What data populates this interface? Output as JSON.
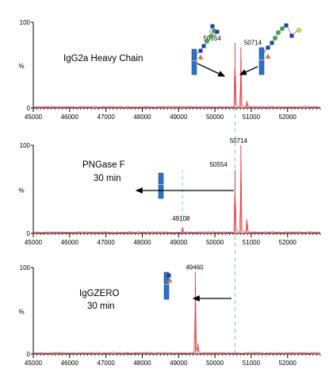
{
  "colors": {
    "trace": "#e8414a",
    "axis": "#000000",
    "arrow": "#000000",
    "guide": "#9ec1e0",
    "protein": "#2f6fc4",
    "glcnac": "#1f3fa8",
    "mannose": "#3cae4a",
    "galactose": "#f2d630",
    "fucose": "#e8604a",
    "fucose_edge": "#d09a2c"
  },
  "chart_data": [
    {
      "type": "line",
      "title": "IgG2a Heavy Chain",
      "xlabel": "",
      "ylabel": "%",
      "xlim": [
        45000,
        52900
      ],
      "ylim": [
        0,
        100
      ],
      "x_ticks": [
        45000,
        46000,
        47000,
        48000,
        49000,
        50000,
        51000,
        52000
      ],
      "y_ticks": [
        0,
        100
      ],
      "y_tick_labels": [
        "0",
        "100"
      ],
      "peaks": [
        {
          "mz": 50554,
          "value": 76,
          "label": "50554"
        },
        {
          "mz": 50714,
          "value": 71,
          "label": "50714"
        },
        {
          "mz": 50880,
          "value": 8,
          "label": ""
        }
      ],
      "annotations": [
        "50554",
        "50714"
      ]
    },
    {
      "type": "line",
      "title": "PNGase F 30 min",
      "title_lines": [
        "PNGase F",
        "30 min"
      ],
      "xlabel": "",
      "ylabel": "%",
      "xlim": [
        45000,
        52900
      ],
      "ylim": [
        0,
        100
      ],
      "x_ticks": [
        45000,
        46000,
        47000,
        48000,
        49000,
        50000,
        51000,
        52000
      ],
      "y_ticks": [
        0,
        100
      ],
      "y_tick_labels": [
        "0",
        "100"
      ],
      "peaks": [
        {
          "mz": 49108,
          "value": 7,
          "label": "49108"
        },
        {
          "mz": 50554,
          "value": 72,
          "label": "50554"
        },
        {
          "mz": 50714,
          "value": 100,
          "label": "50714"
        },
        {
          "mz": 50880,
          "value": 16,
          "label": ""
        }
      ],
      "annotations": [
        "50714",
        "50554",
        "49108"
      ]
    },
    {
      "type": "line",
      "title": "IgGZERO 30 min",
      "title_lines": [
        "IgGZERO",
        "30 min"
      ],
      "xlabel": "",
      "ylabel": "%",
      "xlim": [
        45000,
        52900
      ],
      "ylim": [
        0,
        100
      ],
      "x_ticks": [
        45000,
        46000,
        47000,
        48000,
        49000,
        50000,
        51000,
        52000
      ],
      "y_ticks": [
        0,
        100
      ],
      "y_tick_labels": [
        "0",
        "100"
      ],
      "peaks": [
        {
          "mz": 49460,
          "value": 95,
          "label": "49460"
        },
        {
          "mz": 49530,
          "value": 12,
          "label": ""
        }
      ],
      "annotations": [
        "49460"
      ]
    }
  ]
}
